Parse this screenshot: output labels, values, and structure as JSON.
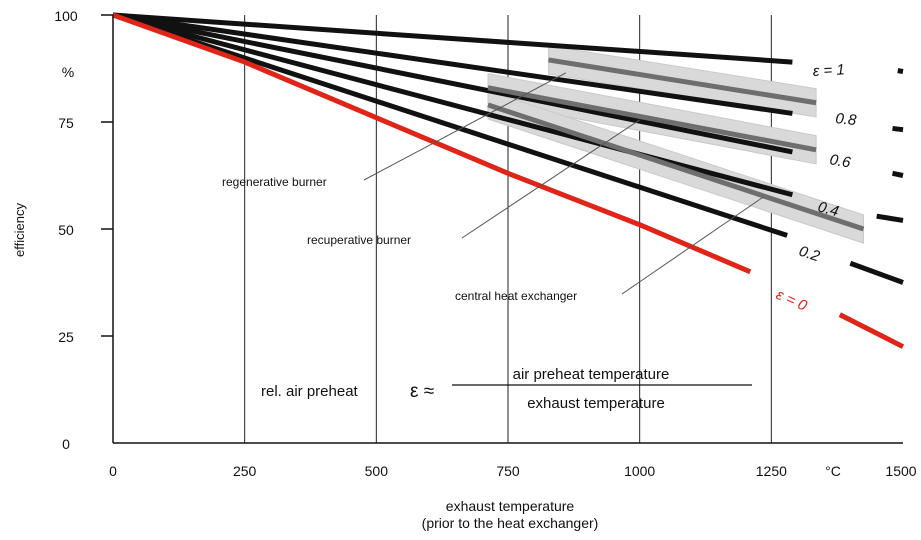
{
  "chart_data": {
    "type": "line",
    "xlabel": "exhaust temperature",
    "xlabel_sub": "(prior to the heat exchanger)",
    "ylabel": "efficiency",
    "y_unit": "%",
    "x_unit": "°C",
    "xlim": [
      0,
      1500
    ],
    "ylim": [
      0,
      100
    ],
    "grid": "x-only",
    "x_ticks": [
      0,
      250,
      500,
      750,
      1000,
      1250,
      1500
    ],
    "x_tick_labels": [
      "0",
      "250",
      "500",
      "750",
      "1000",
      "1250",
      "1500"
    ],
    "y_ticks": [
      0,
      25,
      50,
      75,
      100
    ],
    "y_tick_labels": [
      "0",
      "25",
      "50",
      "75",
      "100"
    ],
    "series": [
      {
        "name": "ε = 1",
        "color": "#111111",
        "x": [
          0,
          1290
        ],
        "y": [
          100,
          89
        ],
        "ext_x": [
          1490,
          1500
        ],
        "ext_y": [
          87,
          86.8
        ]
      },
      {
        "name": "0.8",
        "color": "#111111",
        "x": [
          0,
          1290
        ],
        "y": [
          100,
          77
        ],
        "ext_x": [
          1480,
          1500
        ],
        "ext_y": [
          73.5,
          73.2
        ]
      },
      {
        "name": "0.6",
        "color": "#111111",
        "x": [
          0,
          1290
        ],
        "y": [
          100,
          68
        ],
        "ext_x": [
          1480,
          1500
        ],
        "ext_y": [
          63,
          62.5
        ]
      },
      {
        "name": "0.4",
        "color": "#111111",
        "x": [
          0,
          1290
        ],
        "y": [
          100,
          58
        ],
        "ext_x": [
          1450,
          1500
        ],
        "ext_y": [
          53,
          52
        ]
      },
      {
        "name": "0.2",
        "color": "#111111",
        "x": [
          0,
          1280
        ],
        "y": [
          100,
          48.5
        ],
        "ext_x": [
          1400,
          1500
        ],
        "ext_y": [
          42,
          37.5
        ]
      },
      {
        "name": "ε = 0",
        "color": "#e02418",
        "x": [
          0,
          250,
          500,
          750,
          1000,
          1210
        ],
        "y": [
          100,
          89,
          76,
          63,
          51,
          40
        ],
        "ext_x": [
          1380,
          1500
        ],
        "ext_y": [
          30,
          22.5
        ]
      }
    ],
    "bands": [
      {
        "x": [
          827,
          1335
        ],
        "y_center": [
          89.5,
          79.5
        ],
        "half_width": 3.3
      },
      {
        "x": [
          712,
          1335
        ],
        "y_center": [
          83,
          68.5
        ],
        "half_width": 3.3
      },
      {
        "x": [
          712,
          1425
        ],
        "y_center": [
          79,
          50
        ],
        "half_width": 3.3
      }
    ],
    "grey_lines": [
      {
        "x": [
          827,
          1335
        ],
        "y": [
          89.5,
          79.5
        ]
      },
      {
        "x": [
          712,
          1335
        ],
        "y": [
          83,
          68.5
        ]
      },
      {
        "x": [
          712,
          1425
        ],
        "y": [
          79,
          50
        ]
      }
    ],
    "annotations": [
      {
        "text": "regenerative burner",
        "target_x": 860,
        "target_y": 86.5
      },
      {
        "text": "recuperative burner",
        "target_x": 1000,
        "target_y": 75.5
      },
      {
        "text": "central heat exchanger",
        "target_x": 1235,
        "target_y": 57.5
      }
    ],
    "curve_labels": [
      "ε = 1",
      "0.8",
      "0.6",
      "0.4",
      "0.2",
      "ε = 0"
    ],
    "formula": {
      "prefix": "rel. air preheat",
      "symbol": "ε ≈",
      "numerator": "air preheat temperature",
      "denominator": "exhaust temperature"
    }
  }
}
